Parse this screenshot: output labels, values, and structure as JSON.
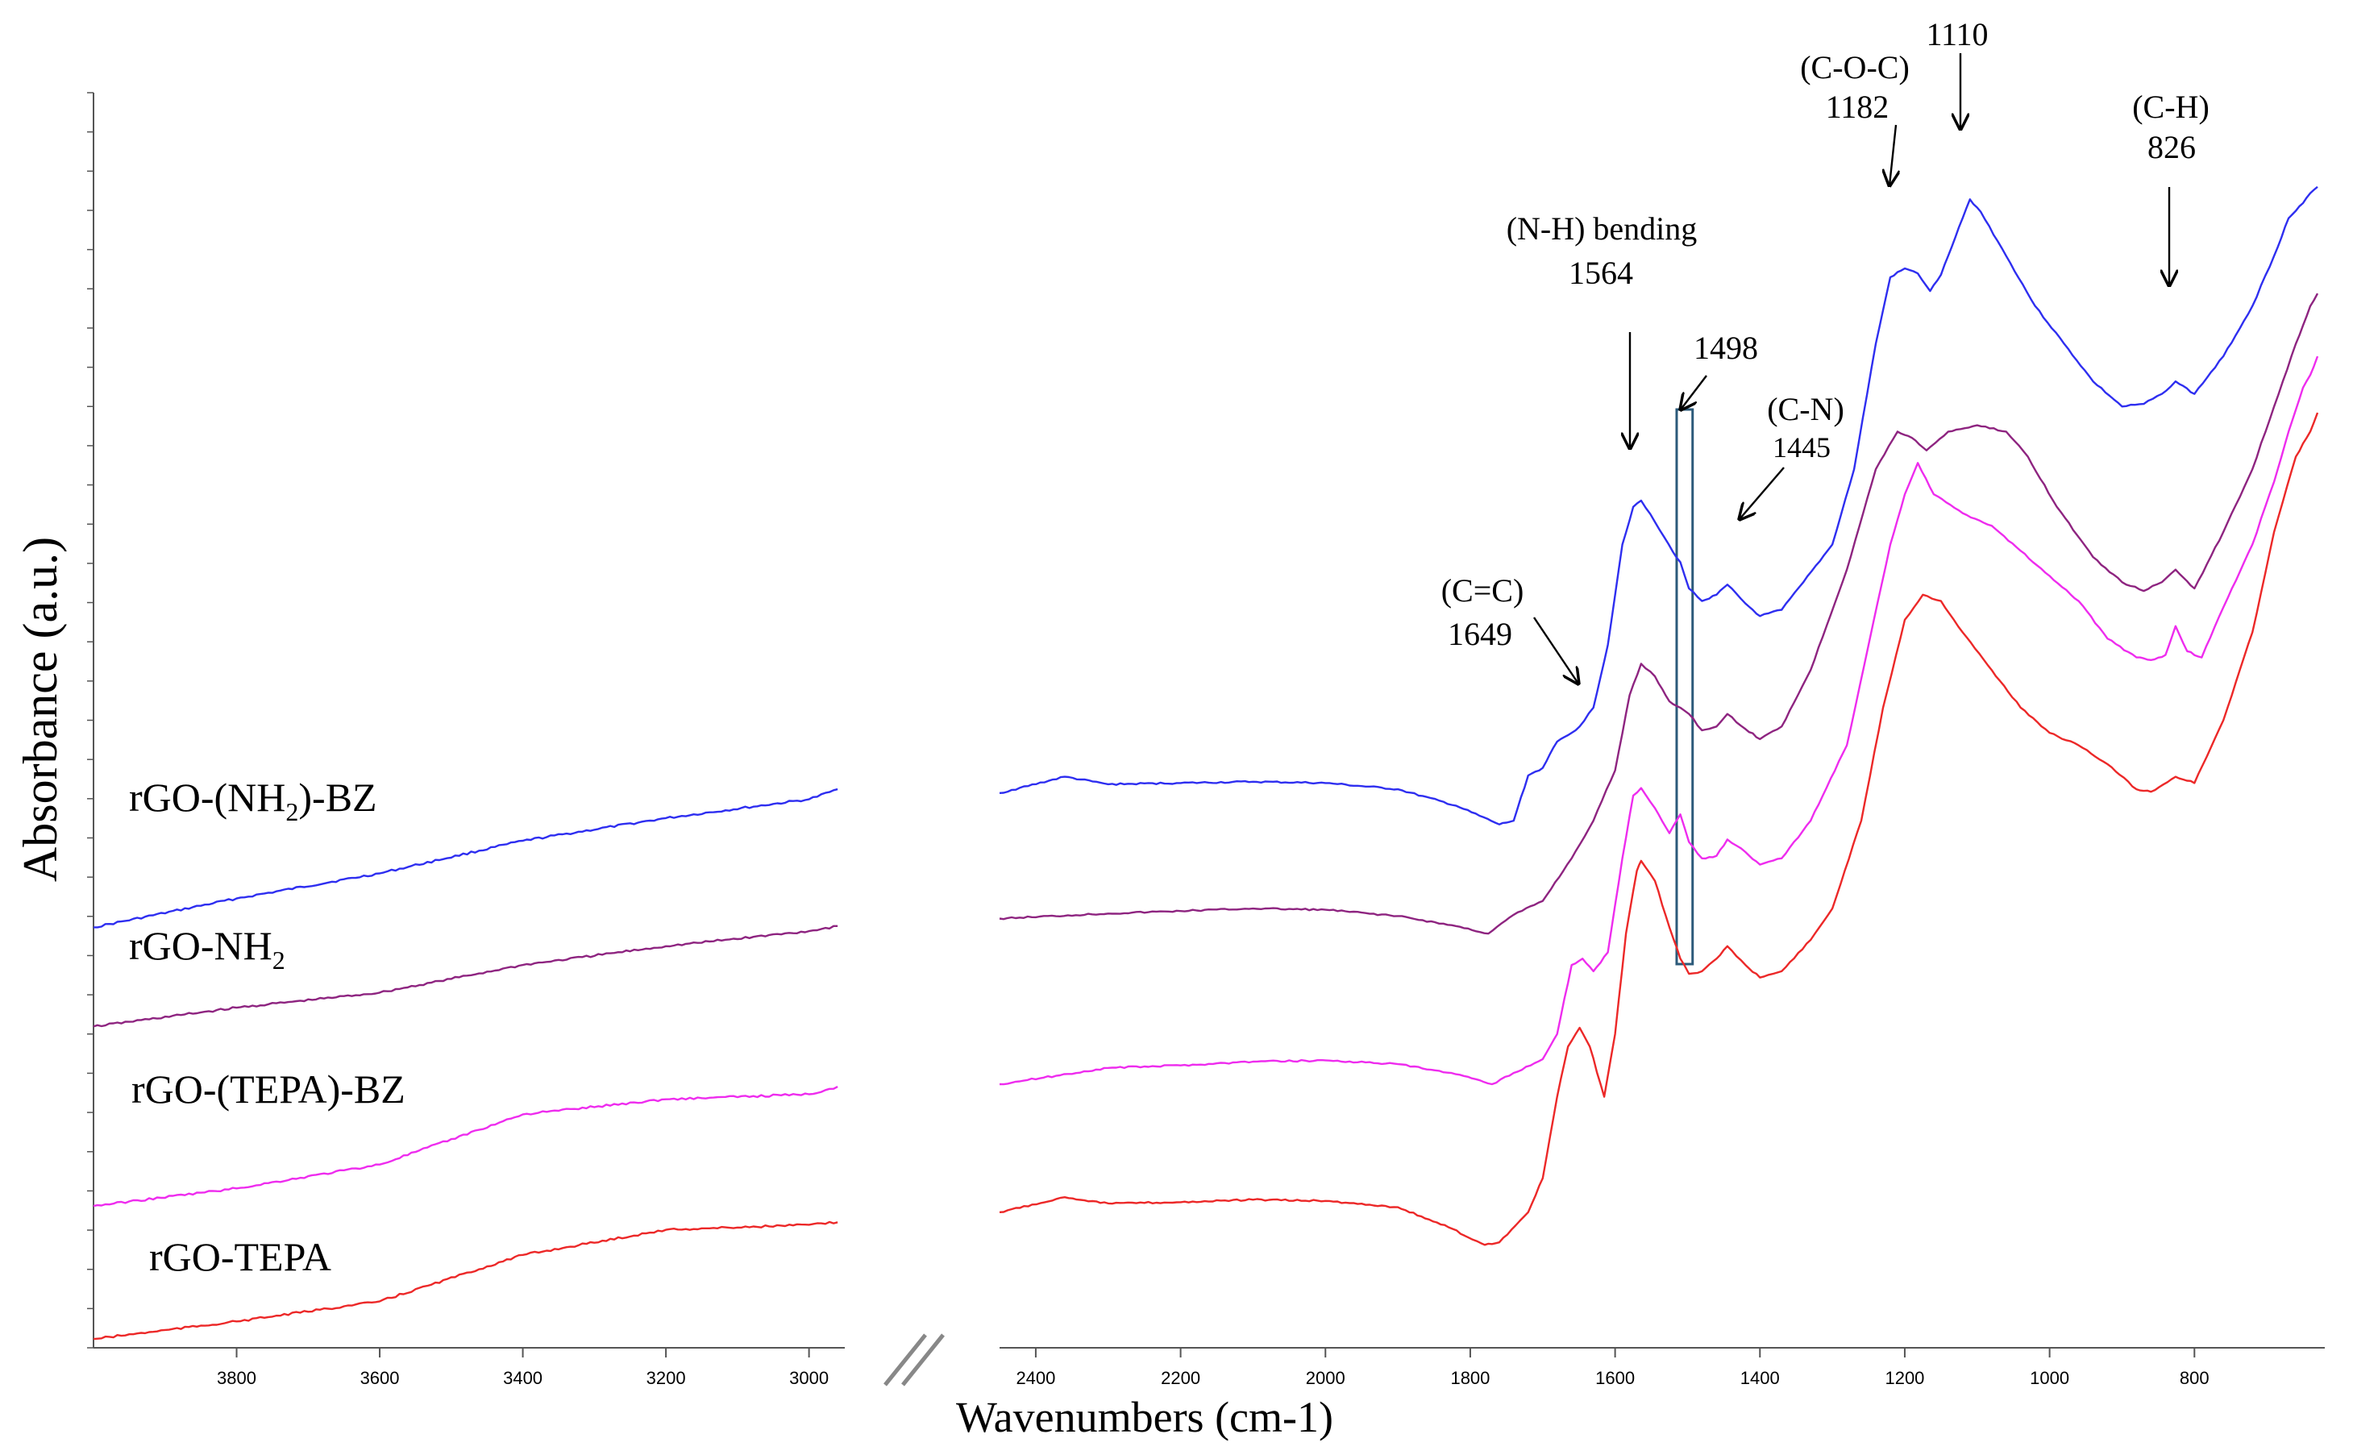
{
  "chart_data": {
    "type": "line",
    "title": "",
    "xlabel": "Wavenumbers (cm-1)",
    "ylabel": "Absorbance (a.u.)",
    "x_axis_break": true,
    "left_panel": {
      "xlim": [
        4000,
        2950
      ],
      "ticks": [
        3800,
        3600,
        3400,
        3200,
        3000
      ]
    },
    "right_panel": {
      "xlim": [
        2450,
        620
      ],
      "ticks": [
        2400,
        2200,
        2000,
        1800,
        1600,
        1400,
        1200,
        1000,
        800
      ]
    },
    "y_relative_range": [
      0,
      100
    ],
    "series": [
      {
        "name": "rGO-(NH2)-BZ",
        "label_main": "rGO-(NH",
        "label_sub": "2",
        "label_tail": ")-BZ",
        "color": "#2e2ef0",
        "left_x": [
          4000,
          3800,
          3600,
          3400,
          3200,
          3000,
          2960
        ],
        "left_y": [
          33.5,
          35.8,
          37.8,
          40.4,
          42.2,
          43.7,
          44.5
        ],
        "right_x": [
          2450,
          2360,
          2300,
          2200,
          2100,
          2000,
          1900,
          1820,
          1760,
          1740,
          1720,
          1700,
          1680,
          1660,
          1649,
          1630,
          1610,
          1590,
          1575,
          1564,
          1545,
          1520,
          1510,
          1498,
          1480,
          1460,
          1445,
          1420,
          1400,
          1370,
          1340,
          1300,
          1270,
          1240,
          1220,
          1200,
          1182,
          1165,
          1150,
          1130,
          1110,
          1095,
          1060,
          1020,
          980,
          940,
          900,
          870,
          845,
          826,
          800,
          760,
          720,
          690,
          670,
          650,
          640,
          630
        ],
        "right_y": [
          44.2,
          45.5,
          44.9,
          45.0,
          45.1,
          45.0,
          44.5,
          43.2,
          41.7,
          42.0,
          45.6,
          46.2,
          48.3,
          49.0,
          49.5,
          51.0,
          56.0,
          64.0,
          67.0,
          67.5,
          65.8,
          63.4,
          62.6,
          60.5,
          59.5,
          60.0,
          60.8,
          59.3,
          58.3,
          58.8,
          61.0,
          64.0,
          70.0,
          80.0,
          85.3,
          86.0,
          85.6,
          84.2,
          85.5,
          88.5,
          91.5,
          90.5,
          87.0,
          83.0,
          80.0,
          77.0,
          75.0,
          75.2,
          76.0,
          77.0,
          76.0,
          79.0,
          83.0,
          87.0,
          90.0,
          91.2,
          92.0,
          92.5
        ]
      },
      {
        "name": "rGO-NH2",
        "label_main": "rGO-NH",
        "label_sub": "2",
        "label_tail": "",
        "color": "#8e2480",
        "left_x": [
          4000,
          3800,
          3600,
          3400,
          3200,
          3000,
          2960
        ],
        "left_y": [
          25.6,
          27.1,
          28.3,
          30.5,
          32.0,
          33.2,
          33.6
        ],
        "right_x": [
          2450,
          2300,
          2200,
          2100,
          2000,
          1900,
          1820,
          1775,
          1740,
          1700,
          1660,
          1630,
          1600,
          1580,
          1564,
          1545,
          1525,
          1510,
          1498,
          1480,
          1460,
          1445,
          1420,
          1400,
          1370,
          1330,
          1280,
          1240,
          1210,
          1190,
          1170,
          1140,
          1100,
          1060,
          1030,
          990,
          940,
          900,
          870,
          845,
          826,
          800,
          760,
          720,
          690,
          660,
          640,
          630
        ],
        "right_y": [
          34.2,
          34.6,
          34.8,
          35.0,
          34.9,
          34.4,
          33.6,
          33.0,
          34.5,
          35.6,
          39.0,
          42.0,
          46.0,
          52.0,
          54.5,
          53.5,
          51.5,
          51.0,
          50.5,
          49.2,
          49.5,
          50.5,
          49.3,
          48.5,
          49.5,
          54.0,
          62.0,
          70.0,
          73.0,
          72.5,
          71.5,
          73.0,
          73.5,
          73.0,
          71.0,
          67.0,
          63.0,
          61.0,
          60.3,
          61.0,
          62.0,
          60.5,
          65.0,
          70.0,
          75.0,
          80.0,
          83.0,
          84.0
        ]
      },
      {
        "name": "rGO-(TEPA)-BZ",
        "label_main": "rGO-(TEPA)-BZ",
        "label_sub": "",
        "label_tail": "",
        "color": "#ee2cee",
        "left_x": [
          4000,
          3800,
          3600,
          3400,
          3200,
          3000,
          2960
        ],
        "left_y": [
          11.3,
          12.7,
          14.6,
          18.6,
          19.8,
          20.2,
          20.8
        ],
        "right_x": [
          2450,
          2300,
          2200,
          2100,
          2000,
          1900,
          1820,
          1770,
          1740,
          1700,
          1680,
          1660,
          1645,
          1630,
          1610,
          1590,
          1575,
          1564,
          1545,
          1525,
          1510,
          1498,
          1480,
          1460,
          1445,
          1420,
          1400,
          1370,
          1330,
          1280,
          1250,
          1220,
          1200,
          1182,
          1160,
          1120,
          1080,
          1040,
          1000,
          960,
          920,
          880,
          860,
          840,
          826,
          810,
          790,
          760,
          720,
          690,
          670,
          650,
          640,
          630
        ],
        "right_y": [
          21.0,
          22.3,
          22.5,
          22.8,
          22.9,
          22.6,
          21.8,
          21.0,
          21.9,
          23.0,
          25.0,
          30.5,
          31.0,
          30.0,
          31.5,
          39.0,
          44.0,
          44.6,
          43.0,
          41.0,
          42.5,
          40.3,
          39.0,
          39.2,
          40.5,
          39.5,
          38.5,
          39.0,
          42.0,
          48.0,
          56.0,
          64.0,
          68.0,
          70.5,
          68.0,
          66.5,
          65.5,
          63.5,
          61.5,
          59.5,
          56.5,
          55.0,
          54.8,
          55.2,
          57.5,
          55.5,
          55.0,
          59.0,
          64.0,
          69.0,
          73.0,
          76.5,
          77.5,
          79.0
        ]
      },
      {
        "name": "rGO-TEPA",
        "label_main": "rGO-TEPA",
        "label_sub": "",
        "label_tail": "",
        "color": "#ec2828",
        "left_x": [
          4000,
          3800,
          3600,
          3400,
          3200,
          3000,
          2960
        ],
        "left_y": [
          0.7,
          2.1,
          3.7,
          7.4,
          9.4,
          9.8,
          10.0
        ],
        "right_x": [
          2450,
          2360,
          2300,
          2200,
          2100,
          2000,
          1900,
          1830,
          1780,
          1760,
          1720,
          1700,
          1680,
          1665,
          1649,
          1635,
          1615,
          1600,
          1585,
          1570,
          1564,
          1545,
          1525,
          1510,
          1498,
          1480,
          1460,
          1445,
          1420,
          1400,
          1370,
          1330,
          1300,
          1260,
          1230,
          1200,
          1175,
          1150,
          1120,
          1080,
          1040,
          1000,
          960,
          920,
          880,
          860,
          826,
          800,
          760,
          720,
          690,
          660,
          640,
          630
        ],
        "right_y": [
          10.8,
          12.0,
          11.5,
          11.6,
          11.8,
          11.7,
          11.2,
          9.6,
          8.2,
          8.4,
          10.8,
          13.5,
          20.0,
          24.0,
          25.5,
          24.0,
          20.0,
          25.0,
          33.0,
          38.0,
          38.8,
          37.2,
          33.5,
          31.0,
          29.8,
          30.0,
          31.0,
          32.0,
          30.5,
          29.5,
          30.0,
          32.5,
          35.0,
          42.0,
          51.0,
          58.0,
          60.0,
          59.5,
          57.0,
          54.0,
          51.0,
          49.0,
          48.0,
          46.5,
          44.5,
          44.3,
          45.5,
          45.0,
          50.0,
          57.0,
          65.0,
          71.0,
          73.0,
          74.5
        ]
      }
    ],
    "annotations": [
      {
        "id": "c-c",
        "line1": "(C=C)",
        "line2": "1649",
        "wavenumber": 1649,
        "series_index": 0
      },
      {
        "id": "n-h",
        "line1": "(N-H) bending",
        "line2": "1564",
        "wavenumber": 1564,
        "series_index": 0
      },
      {
        "id": "b1498",
        "line1": "1498",
        "line2": "",
        "wavenumber": 1498,
        "series_index": 0
      },
      {
        "id": "c-n",
        "line1": "(C-N)",
        "line2": "1445",
        "wavenumber": 1445,
        "series_index": 0
      },
      {
        "id": "c-o-c",
        "line1": "(C-O-C)",
        "line2": "1182",
        "wavenumber": 1182,
        "series_index": 0
      },
      {
        "id": "b1110",
        "line1": "1110",
        "line2": "",
        "wavenumber": 1110,
        "series_index": 0
      },
      {
        "id": "c-h",
        "line1": "(C-H)",
        "line2": "826",
        "wavenumber": 826,
        "series_index": 0
      }
    ],
    "highlight_band": {
      "from": 1515,
      "to": 1493,
      "color": "#2c5a7a"
    }
  }
}
